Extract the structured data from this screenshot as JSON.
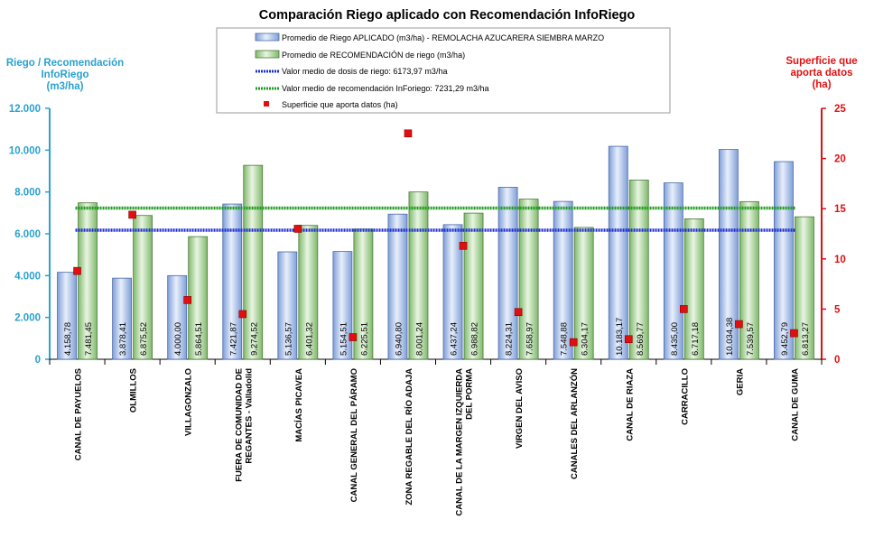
{
  "chart_data": {
    "type": "bar",
    "title": "Comparación Riego aplicado con Recomendación InfoRiego",
    "ylabel_left": [
      "Riego / Recomendación",
      "InfoRiego",
      "(m3/ha)"
    ],
    "ylabel_right": [
      "Superficie que",
      "aporta datos",
      "(ha)"
    ],
    "ylim_left": [
      0,
      12000
    ],
    "ylim_right": [
      0,
      25
    ],
    "yticks_left": [
      "0",
      "2.000",
      "4.000",
      "6.000",
      "8.000",
      "10.000",
      "12.000"
    ],
    "yticks_right": [
      "0",
      "5",
      "10",
      "15",
      "20",
      "25"
    ],
    "categories": [
      [
        "CANAL DE PAYUELOS"
      ],
      [
        "OLMILLOS"
      ],
      [
        "VILLAGONZALO"
      ],
      [
        "FUERA DE COMUNIDAD DE",
        "REGANTES - Valladolid"
      ],
      [
        "MACÍAS PICAVEA"
      ],
      [
        "CANAL GENERAL DEL PÁRAMO"
      ],
      [
        "ZONA REGABLE DEL RÍO ADAJA"
      ],
      [
        "CANAL DE LA MARGEN IZQUIERDA",
        "DEL PORMA"
      ],
      [
        "VIRGEN DEL AVISO"
      ],
      [
        "CANALES DEL ARLANZÓN"
      ],
      [
        "CANAL DE RIAZA"
      ],
      [
        "CARRACILLO"
      ],
      [
        "GERIA"
      ],
      [
        "CANAL DE GUMA"
      ]
    ],
    "series": [
      {
        "name": "Promedio de Riego APLICADO (m3/ha) - REMOLACHA AZUCARERA SIEMBRA MARZO",
        "axis": "left",
        "color": "#a9c4ea",
        "values": [
          4158.78,
          3878.41,
          4000.0,
          7421.87,
          5136.57,
          5154.51,
          6940.8,
          6437.24,
          8224.31,
          7548.88,
          10183.17,
          8435.0,
          10034.38,
          9452.79
        ],
        "labels": [
          "4.158,78",
          "3.878,41",
          "4.000,00",
          "7.421,87",
          "5.136,57",
          "5.154,51",
          "6.940,80",
          "6.437,24",
          "8.224,31",
          "7.548,88",
          "10.183,17",
          "8.435,00",
          "10.034,38",
          "9.452,79"
        ]
      },
      {
        "name": "Promedio de RECOMENDACIÓN de riego (m3/ha)",
        "axis": "left",
        "color": "#a6d495",
        "values": [
          7481.45,
          6875.52,
          5864.51,
          9274.52,
          6401.32,
          6225.51,
          8001.24,
          6988.82,
          7658.97,
          6304.17,
          8569.77,
          6717.18,
          7539.57,
          6813.27
        ],
        "labels": [
          "7.481,45",
          "6.875,52",
          "5.864,51",
          "9.274,52",
          "6.401,32",
          "6.225,51",
          "8.001,24",
          "6.988,82",
          "7.658,97",
          "6.304,17",
          "8.569,77",
          "6.717,18",
          "7.539,57",
          "6.813,27"
        ]
      },
      {
        "name": "Valor medio de dosis de riego: 6173,97 m3/ha",
        "type": "line",
        "axis": "left",
        "color": "#1f2fd0",
        "value": 6173.97
      },
      {
        "name": "Valor medio de recomendación InForiego: 7231,29 m3/ha",
        "type": "line",
        "axis": "left",
        "color": "#1f9a1f",
        "value": 7231.29
      },
      {
        "name": "Superficie que aporta datos  (ha)",
        "type": "scatter",
        "axis": "right",
        "color": "#e01010",
        "values": [
          8.8,
          14.4,
          5.9,
          4.5,
          13.0,
          2.2,
          22.5,
          11.3,
          4.7,
          1.7,
          2.0,
          5.0,
          3.5,
          2.6
        ]
      }
    ]
  }
}
